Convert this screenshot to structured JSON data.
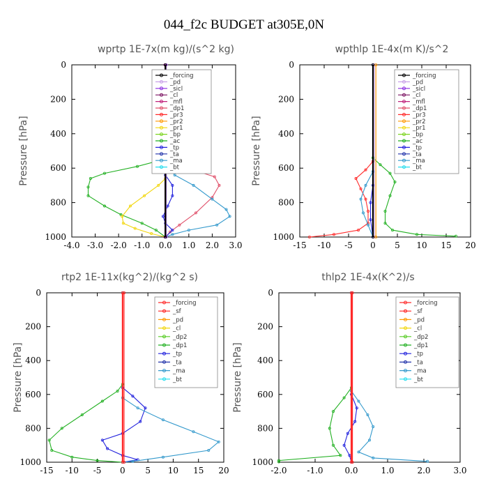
{
  "figure_title": "044_f2c  BUDGET at305E,0N",
  "colors": {
    "forcing": "#000000",
    "pd": "#c8a0e8",
    "sicl": "#8a2be2",
    "cl": "#7a1060",
    "mfl": "#c0207a",
    "dp1": "#e0506a",
    "pr3": "#ff2a2a",
    "pr2": "#ff9900",
    "pr1": "#f2d60a",
    "bp": "#7cd420",
    "ac": "#22b022",
    "tp": "#2222dd",
    "ta": "#2233aa",
    "ma": "#3399cc",
    "bt": "#22ddee",
    "sf": "#ff2020",
    "dp2": "#55cc22",
    "forcing_red": "#ff2a2a"
  },
  "chart_data": [
    {
      "type": "line",
      "title": "wprtp  1E-7x(m kg)/(s^2 kg)",
      "ylabel": "Pressure [hPa]",
      "xlim": [
        -4,
        3
      ],
      "ylim": [
        1000,
        0
      ],
      "xticks": [
        -4,
        -3,
        -2,
        -1,
        0,
        1,
        2,
        3
      ],
      "xticklabels": [
        "-4.0",
        "-3.0",
        "-2.0",
        "-1.0",
        "0.0",
        "1.0",
        "2.0",
        "3.0"
      ],
      "yticks": [
        0,
        200,
        400,
        600,
        800,
        1000
      ],
      "yticklabels": [
        "0",
        "200",
        "400",
        "600",
        "800",
        "1000"
      ],
      "legend": [
        "_forcing",
        "_pd",
        "_sicl",
        "_cl",
        "_mfl",
        "_dp1",
        "_pr3",
        "_pr2",
        "_pr1",
        "_bp",
        "_ac",
        "_tp",
        "_ta",
        "_ma",
        "_bt"
      ],
      "legend_colors": [
        "forcing",
        "pd",
        "sicl",
        "cl",
        "mfl",
        "dp1",
        "pr3",
        "pr2",
        "pr1",
        "bp",
        "ac",
        "tp",
        "ta",
        "ma",
        "bt"
      ],
      "legend_loc": "top-right",
      "series": [
        {
          "name": "_ac",
          "color": "ac",
          "points": [
            [
              0,
              0
            ],
            [
              0,
              520
            ],
            [
              -0.1,
              550
            ],
            [
              -1.2,
              590
            ],
            [
              -2.6,
              630
            ],
            [
              -3.2,
              660
            ],
            [
              -3.3,
              710
            ],
            [
              -3.3,
              760
            ],
            [
              -2.6,
              820
            ],
            [
              -1.9,
              870
            ],
            [
              -1.0,
              920
            ],
            [
              -0.4,
              960
            ],
            [
              0,
              1000
            ]
          ]
        },
        {
          "name": "_pr1",
          "color": "pr1",
          "points": [
            [
              0,
              0
            ],
            [
              0,
              660
            ],
            [
              -0.3,
              700
            ],
            [
              -0.9,
              760
            ],
            [
              -1.5,
              820
            ],
            [
              -1.85,
              880
            ],
            [
              -1.8,
              920
            ],
            [
              -1.3,
              950
            ],
            [
              -0.6,
              980
            ],
            [
              0,
              1000
            ]
          ]
        },
        {
          "name": "_dp1",
          "color": "dp1",
          "points": [
            [
              0,
              0
            ],
            [
              0,
              540
            ],
            [
              0.4,
              570
            ],
            [
              1.4,
              620
            ],
            [
              2.1,
              650
            ],
            [
              2.3,
              700
            ],
            [
              2.0,
              770
            ],
            [
              1.3,
              860
            ],
            [
              0.6,
              930
            ],
            [
              0.2,
              970
            ],
            [
              0,
              1000
            ]
          ]
        },
        {
          "name": "_ma",
          "color": "ma",
          "points": [
            [
              0,
              0
            ],
            [
              0,
              580
            ],
            [
              0.4,
              640
            ],
            [
              1.2,
              700
            ],
            [
              2.0,
              780
            ],
            [
              2.6,
              840
            ],
            [
              2.75,
              880
            ],
            [
              2.2,
              930
            ],
            [
              1.0,
              960
            ],
            [
              0.3,
              985
            ],
            [
              0,
              1000
            ]
          ]
        },
        {
          "name": "_tp",
          "color": "tp",
          "points": [
            [
              0,
              0
            ],
            [
              0,
              640
            ],
            [
              0.3,
              700
            ],
            [
              0.3,
              760
            ],
            [
              0.1,
              820
            ],
            [
              -0.1,
              880
            ],
            [
              0,
              920
            ],
            [
              0.3,
              960
            ],
            [
              0,
              1000
            ]
          ]
        },
        {
          "name": "_pd",
          "color": "pd",
          "points": [
            [
              0.04,
              0
            ],
            [
              0.04,
              1000
            ]
          ]
        },
        {
          "name": "_sicl",
          "color": "sicl",
          "points": [
            [
              0.02,
              0
            ],
            [
              0.02,
              1000
            ]
          ]
        },
        {
          "name": "_cl",
          "color": "cl",
          "points": [
            [
              -0.02,
              0
            ],
            [
              -0.02,
              1000
            ]
          ]
        },
        {
          "name": "_forcing",
          "color": "forcing",
          "points": [
            [
              0,
              0
            ],
            [
              0,
              1000
            ]
          ]
        }
      ]
    },
    {
      "type": "line",
      "title": "wpthlp  1E-4x(m K)/s^2",
      "ylabel": "Pressure [hPa]",
      "xlim": [
        -15,
        20
      ],
      "ylim": [
        1000,
        0
      ],
      "xticks": [
        -15,
        -10,
        -5,
        0,
        5,
        10,
        15,
        20
      ],
      "xticklabels": [
        "-15",
        "-10",
        "-5",
        "0",
        "5",
        "10",
        "15",
        "20"
      ],
      "yticks": [
        0,
        200,
        400,
        600,
        800,
        1000
      ],
      "yticklabels": [
        "0",
        "200",
        "400",
        "600",
        "800",
        "1000"
      ],
      "legend": [
        "_forcing",
        "_pd",
        "_sicl",
        "_cl",
        "_mfl",
        "_dp1",
        "_pr3",
        "_pr2",
        "_pr1",
        "_bp",
        "_ac",
        "_tp",
        "_ta",
        "_ma",
        "_bt"
      ],
      "legend_colors": [
        "forcing",
        "pd",
        "sicl",
        "cl",
        "mfl",
        "dp1",
        "pr3",
        "pr2",
        "pr1",
        "bp",
        "ac",
        "tp",
        "ta",
        "ma",
        "bt"
      ],
      "legend_loc": "top-right",
      "series": [
        {
          "name": "_ac",
          "color": "ac",
          "points": [
            [
              0,
              0
            ],
            [
              0,
              540
            ],
            [
              1.5,
              580
            ],
            [
              3.5,
              630
            ],
            [
              4.5,
              680
            ],
            [
              3.5,
              760
            ],
            [
              2.5,
              850
            ],
            [
              2.5,
              920
            ],
            [
              4,
              960
            ],
            [
              9,
              985
            ],
            [
              17,
              995
            ]
          ]
        },
        {
          "name": "_pr3",
          "color": "pr3",
          "points": [
            [
              0,
              0
            ],
            [
              0,
              560
            ],
            [
              -1.5,
              610
            ],
            [
              -3.5,
              660
            ],
            [
              -2.5,
              720
            ],
            [
              -1.5,
              780
            ],
            [
              -1,
              850
            ],
            [
              -1,
              920
            ],
            [
              -3,
              960
            ],
            [
              -8,
              985
            ],
            [
              -13,
              1000
            ]
          ]
        },
        {
          "name": "_ma",
          "color": "ma",
          "points": [
            [
              0,
              0
            ],
            [
              0,
              620
            ],
            [
              -1.5,
              700
            ],
            [
              -2.5,
              780
            ],
            [
              -2,
              860
            ],
            [
              -1,
              930
            ],
            [
              0,
              1000
            ]
          ]
        },
        {
          "name": "_tp",
          "color": "tp",
          "points": [
            [
              0,
              0
            ],
            [
              0,
              700
            ],
            [
              -0.5,
              800
            ],
            [
              -0.5,
              900
            ],
            [
              0,
              1000
            ]
          ]
        },
        {
          "name": "_pd",
          "color": "pd",
          "points": [
            [
              0.3,
              0
            ],
            [
              0.3,
              1000
            ]
          ]
        },
        {
          "name": "_pr2",
          "color": "pr2",
          "points": [
            [
              0.6,
              0
            ],
            [
              0.6,
              1000
            ]
          ]
        },
        {
          "name": "_forcing",
          "color": "forcing",
          "points": [
            [
              0,
              0
            ],
            [
              0,
              1000
            ]
          ]
        }
      ]
    },
    {
      "type": "line",
      "title": "rtp2  1E-11x(kg^2)/(kg^2 s)",
      "ylabel": "Pressure [hPa]",
      "xlim": [
        -15,
        20
      ],
      "ylim": [
        1000,
        0
      ],
      "xticks": [
        -15,
        -10,
        -5,
        0,
        5,
        10,
        15,
        20
      ],
      "xticklabels": [
        "-15",
        "-10",
        "-5",
        "0",
        "5",
        "10",
        "15",
        "20"
      ],
      "yticks": [
        0,
        200,
        400,
        600,
        800,
        1000
      ],
      "yticklabels": [
        "0",
        "200",
        "400",
        "600",
        "800",
        "1000"
      ],
      "legend": [
        "_forcing",
        "_sf",
        "_pd",
        "_cl",
        "_dp2",
        "_dp1",
        "_tp",
        "_ta",
        "_ma",
        "_bt"
      ],
      "legend_colors": [
        "forcing_red",
        "sf",
        "pr2",
        "pr1",
        "dp2",
        "ac",
        "tp",
        "ta",
        "ma",
        "bt"
      ],
      "legend_loc": "top-right",
      "series": [
        {
          "name": "_dp1",
          "color": "ac",
          "points": [
            [
              0,
              0
            ],
            [
              0,
              540
            ],
            [
              -1,
              580
            ],
            [
              -4,
              640
            ],
            [
              -8,
              720
            ],
            [
              -12,
              800
            ],
            [
              -14.5,
              870
            ],
            [
              -14,
              930
            ],
            [
              -10,
              970
            ],
            [
              -5,
              990
            ],
            [
              0,
              1000
            ]
          ]
        },
        {
          "name": "_tp",
          "color": "tp",
          "points": [
            [
              0,
              0
            ],
            [
              0,
              560
            ],
            [
              2,
              610
            ],
            [
              4.5,
              680
            ],
            [
              3.5,
              760
            ],
            [
              0,
              830
            ],
            [
              -4,
              870
            ],
            [
              -3,
              920
            ],
            [
              0,
              960
            ],
            [
              3,
              985
            ],
            [
              0,
              1000
            ]
          ]
        },
        {
          "name": "_ma",
          "color": "ma",
          "points": [
            [
              0,
              0
            ],
            [
              0,
              620
            ],
            [
              3,
              680
            ],
            [
              8,
              750
            ],
            [
              14,
              820
            ],
            [
              19,
              880
            ],
            [
              17,
              930
            ],
            [
              8,
              970
            ],
            [
              2,
              995
            ],
            [
              0,
              1000
            ]
          ]
        },
        {
          "name": "_forcing",
          "color": "forcing_red",
          "points": [
            [
              0,
              0
            ],
            [
              0,
              1000
            ]
          ]
        },
        {
          "name": "_sf",
          "color": "sf",
          "points": [
            [
              0.3,
              0
            ],
            [
              0.3,
              1000
            ]
          ]
        }
      ]
    },
    {
      "type": "line",
      "title": "thlp2  1E-4x(K^2)/s",
      "ylabel": "Pressure [hPa]",
      "xlim": [
        -2,
        3
      ],
      "ylim": [
        1000,
        0
      ],
      "xticks": [
        -2,
        -1,
        0,
        1,
        2,
        3
      ],
      "xticklabels": [
        "-2.0",
        "-1.0",
        "0.0",
        "1.0",
        "2.0",
        "3.0"
      ],
      "yticks": [
        0,
        200,
        400,
        600,
        800,
        1000
      ],
      "yticklabels": [
        "0",
        "200",
        "400",
        "600",
        "800",
        "1000"
      ],
      "legend": [
        "_forcing",
        "_sf",
        "_pd",
        "_cl",
        "_dp2",
        "_dp1",
        "_tp",
        "_ta",
        "_ma",
        "_bt"
      ],
      "legend_colors": [
        "forcing_red",
        "sf",
        "pr2",
        "pr1",
        "dp2",
        "ac",
        "tp",
        "ta",
        "ma",
        "bt"
      ],
      "legend_loc": "top-right",
      "series": [
        {
          "name": "_dp1",
          "color": "ac",
          "points": [
            [
              0,
              0
            ],
            [
              0,
              560
            ],
            [
              -0.2,
              620
            ],
            [
              -0.5,
              700
            ],
            [
              -0.6,
              800
            ],
            [
              -0.5,
              900
            ],
            [
              -0.3,
              960
            ],
            [
              -2.0,
              990
            ],
            [
              -2.0,
              998
            ]
          ]
        },
        {
          "name": "_ma",
          "color": "ma",
          "points": [
            [
              0,
              0
            ],
            [
              0,
              580
            ],
            [
              0.2,
              640
            ],
            [
              0.45,
              720
            ],
            [
              0.6,
              790
            ],
            [
              0.5,
              870
            ],
            [
              0.2,
              940
            ],
            [
              0.6,
              975
            ],
            [
              2.1,
              995
            ]
          ]
        },
        {
          "name": "_tp",
          "color": "tp",
          "points": [
            [
              0,
              0
            ],
            [
              0,
              600
            ],
            [
              0.15,
              680
            ],
            [
              0.1,
              760
            ],
            [
              -0.1,
              830
            ],
            [
              -0.2,
              900
            ],
            [
              -0.05,
              960
            ],
            [
              0,
              1000
            ]
          ]
        },
        {
          "name": "_forcing",
          "color": "forcing_red",
          "points": [
            [
              0,
              0
            ],
            [
              0,
              1000
            ]
          ]
        },
        {
          "name": "_sf",
          "color": "sf",
          "points": [
            [
              0.03,
              0
            ],
            [
              0.03,
              1000
            ]
          ]
        }
      ]
    }
  ]
}
